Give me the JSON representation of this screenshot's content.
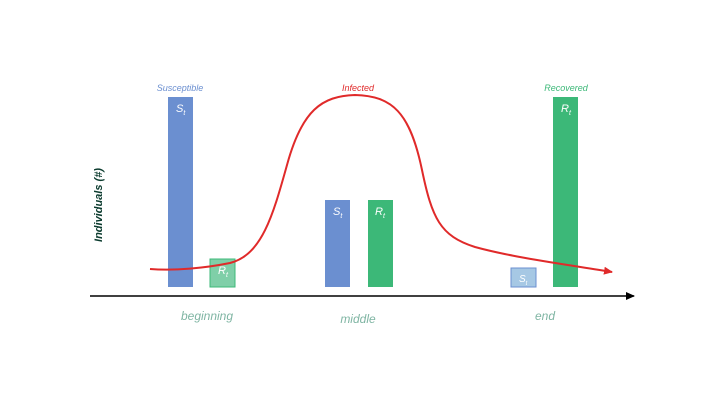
{
  "colors": {
    "susceptible": "#6b8fd0",
    "recovered": "#3cb878",
    "recovered_light": "#7fcfa8",
    "susceptible_light": "#a6c8e4",
    "infected": "#e02a2a",
    "phase_text": "#7fb5a3",
    "axis": "#000000",
    "ylabel": "#0b3b2e"
  },
  "labels": {
    "susceptible": "Susceptible",
    "infected": "Infected",
    "recovered": "Recovered",
    "ylabel": "Individuals (#)"
  },
  "phases": [
    "beginning",
    "middle",
    "end"
  ],
  "bar_symbols": {
    "s": "S",
    "r": "R",
    "sub": "t"
  }
}
